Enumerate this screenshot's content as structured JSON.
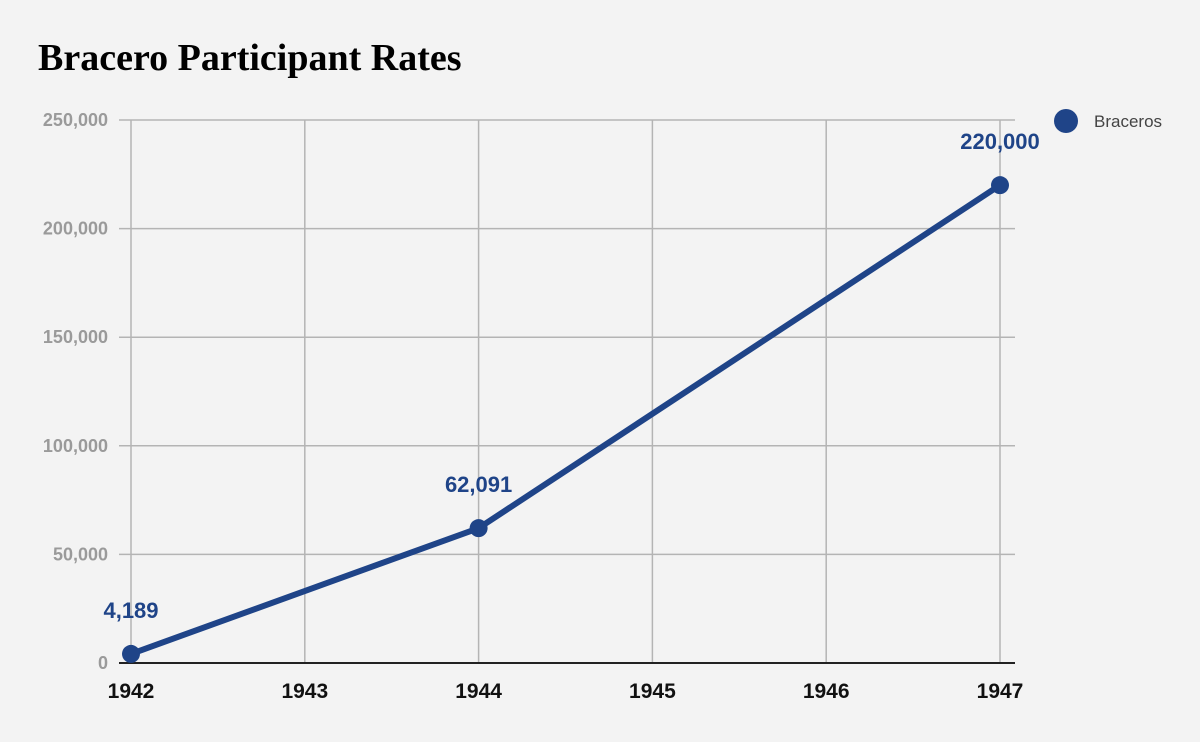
{
  "chart_data": {
    "type": "line",
    "title": "Bracero Participant Rates",
    "x": [
      1942,
      1943,
      1944,
      1945,
      1946,
      1947
    ],
    "x_tick_labels": [
      "1942",
      "1943",
      "1944",
      "1945",
      "1946",
      "1947"
    ],
    "series": [
      {
        "name": "Braceros",
        "color": "#1f4488",
        "points": [
          {
            "x": 1942,
            "y": 4189,
            "label": "4,189"
          },
          {
            "x": 1944,
            "y": 62091,
            "label": "62,091"
          },
          {
            "x": 1947,
            "y": 220000,
            "label": "220,000"
          }
        ]
      }
    ],
    "ylim": [
      0,
      250000
    ],
    "y_ticks": [
      0,
      50000,
      100000,
      150000,
      200000,
      250000
    ],
    "y_tick_labels": [
      "0",
      "50,000",
      "100,000",
      "150,000",
      "200,000",
      "250,000"
    ],
    "xlabel": "",
    "ylabel": "",
    "grid": true,
    "legend_position": "top-right"
  }
}
